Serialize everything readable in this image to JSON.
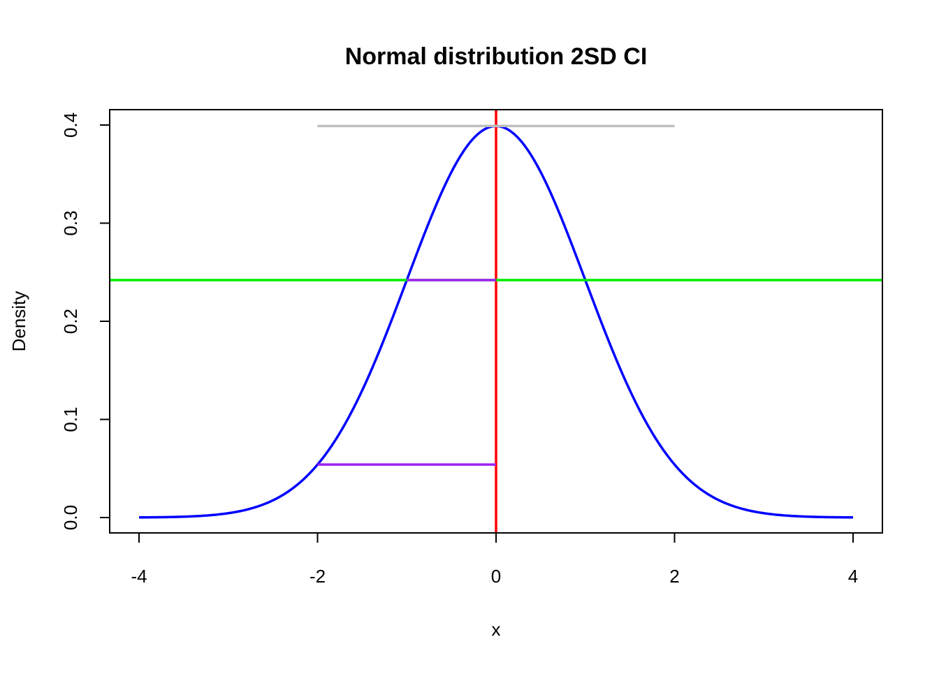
{
  "chart_data": {
    "type": "line",
    "title": "Normal distribution 2SD CI",
    "xlabel": "x",
    "ylabel": "Density",
    "xlim": [
      -4,
      4
    ],
    "ylim": [
      0,
      0.4
    ],
    "x_ticks": [
      -4,
      -2,
      0,
      2,
      4
    ],
    "y_ticks": [
      0.0,
      0.1,
      0.2,
      0.3,
      0.4
    ],
    "x_tick_labels": [
      "-4",
      "-2",
      "0",
      "2",
      "4"
    ],
    "y_tick_labels": [
      "0.0",
      "0.1",
      "0.2",
      "0.3",
      "0.4"
    ],
    "grid": false,
    "legend": "none",
    "curve": {
      "function": "standard normal density",
      "mean": 0,
      "sd": 1,
      "x_range": [
        -4,
        4
      ],
      "color": "#0000ff"
    },
    "annotations": [
      {
        "kind": "vline",
        "x": 0,
        "color": "#ff0000"
      },
      {
        "kind": "hline",
        "y": 0.242,
        "color": "#00ee00"
      },
      {
        "kind": "segment",
        "x0": -2,
        "y0": 0.399,
        "x1": 2,
        "y1": 0.399,
        "color": "#bebebe"
      },
      {
        "kind": "segment",
        "x0": -1,
        "y0": 0.242,
        "x1": 0,
        "y1": 0.242,
        "color": "#a020f0"
      },
      {
        "kind": "segment",
        "x0": -2,
        "y0": 0.054,
        "x1": 0,
        "y1": 0.054,
        "color": "#a020f0"
      }
    ]
  }
}
